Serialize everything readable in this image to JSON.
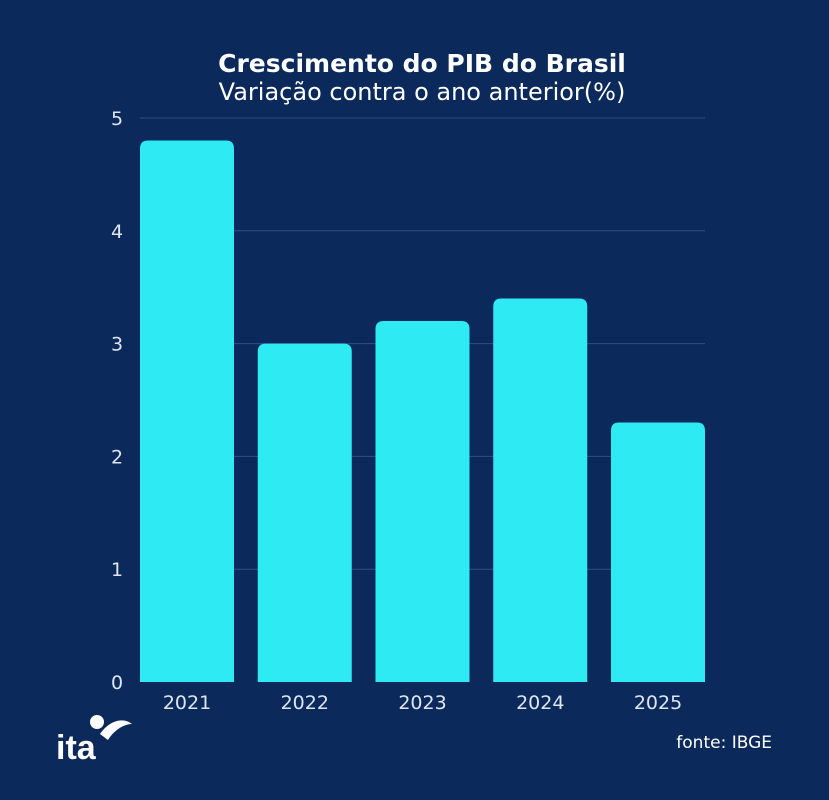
{
  "chart_data": {
    "type": "bar",
    "title": "Crescimento do PIB do Brasil",
    "subtitle": "Variação contra o ano anterior(%)",
    "categories": [
      "2021",
      "2022",
      "2023",
      "2024",
      "2025"
    ],
    "values": [
      4.8,
      3.0,
      3.2,
      3.4,
      2.3
    ],
    "ylim": [
      0,
      5
    ],
    "yticks": [
      0,
      1,
      2,
      3,
      4,
      5
    ],
    "grid": true,
    "bar_color": "#2eeaf2",
    "background_color": "#0b2a5b"
  },
  "footer": {
    "logo_text": "ita",
    "source": "fonte: IBGE"
  }
}
